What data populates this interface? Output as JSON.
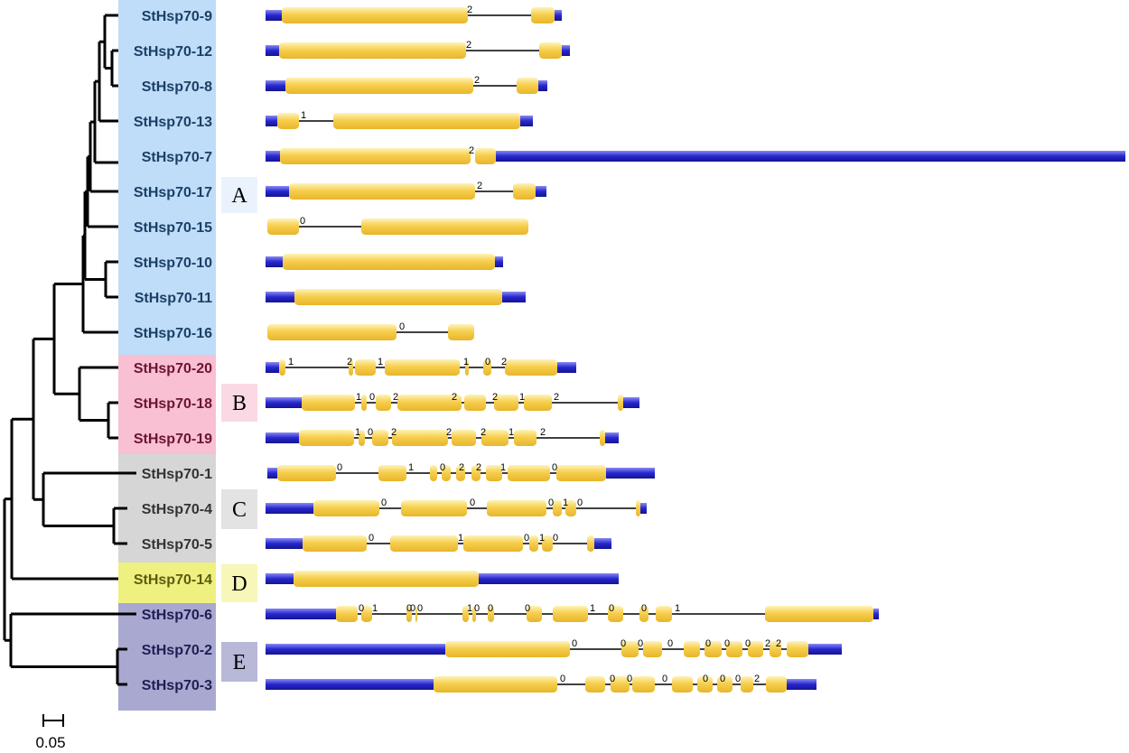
{
  "scale_bar": {
    "label": "0.05"
  },
  "groups": [
    {
      "id": "A",
      "label": "A",
      "color": "#bfdcf8",
      "text_color": "#1b3f66",
      "box_color": "#eaf3fd"
    },
    {
      "id": "B",
      "label": "B",
      "color": "#f9bfd3",
      "text_color": "#6b1430",
      "box_color": "#fbd9e4"
    },
    {
      "id": "C",
      "label": "C",
      "color": "#d6d6d6",
      "text_color": "#333333",
      "box_color": "#e3e3e3"
    },
    {
      "id": "D",
      "label": "D",
      "color": "#eef080",
      "text_color": "#5c5c10",
      "box_color": "#f6f7b8"
    },
    {
      "id": "E",
      "label": "E",
      "color": "#a8a8d0",
      "text_color": "#1e1e55",
      "box_color": "#b8b8d8"
    }
  ],
  "genes": [
    {
      "name": "StHsp70-9",
      "group": "A"
    },
    {
      "name": "StHsp70-12",
      "group": "A"
    },
    {
      "name": "StHsp70-8",
      "group": "A"
    },
    {
      "name": "StHsp70-13",
      "group": "A"
    },
    {
      "name": "StHsp70-7",
      "group": "A"
    },
    {
      "name": "StHsp70-17",
      "group": "A"
    },
    {
      "name": "StHsp70-15",
      "group": "A"
    },
    {
      "name": "StHsp70-10",
      "group": "A"
    },
    {
      "name": "StHsp70-11",
      "group": "A"
    },
    {
      "name": "StHsp70-16",
      "group": "A"
    },
    {
      "name": "StHsp70-20",
      "group": "B"
    },
    {
      "name": "StHsp70-18",
      "group": "B"
    },
    {
      "name": "StHsp70-19",
      "group": "B"
    },
    {
      "name": "StHsp70-1",
      "group": "C"
    },
    {
      "name": "StHsp70-4",
      "group": "C"
    },
    {
      "name": "StHsp70-5",
      "group": "C"
    },
    {
      "name": "StHsp70-14",
      "group": "D"
    },
    {
      "name": "StHsp70-6",
      "group": "E"
    },
    {
      "name": "StHsp70-2",
      "group": "E"
    },
    {
      "name": "StHsp70-3",
      "group": "E"
    }
  ],
  "colors": {
    "utr": "#2a2ad0",
    "cds": "#f4c63c",
    "intron": "#000000",
    "tree": "#000000"
  }
}
